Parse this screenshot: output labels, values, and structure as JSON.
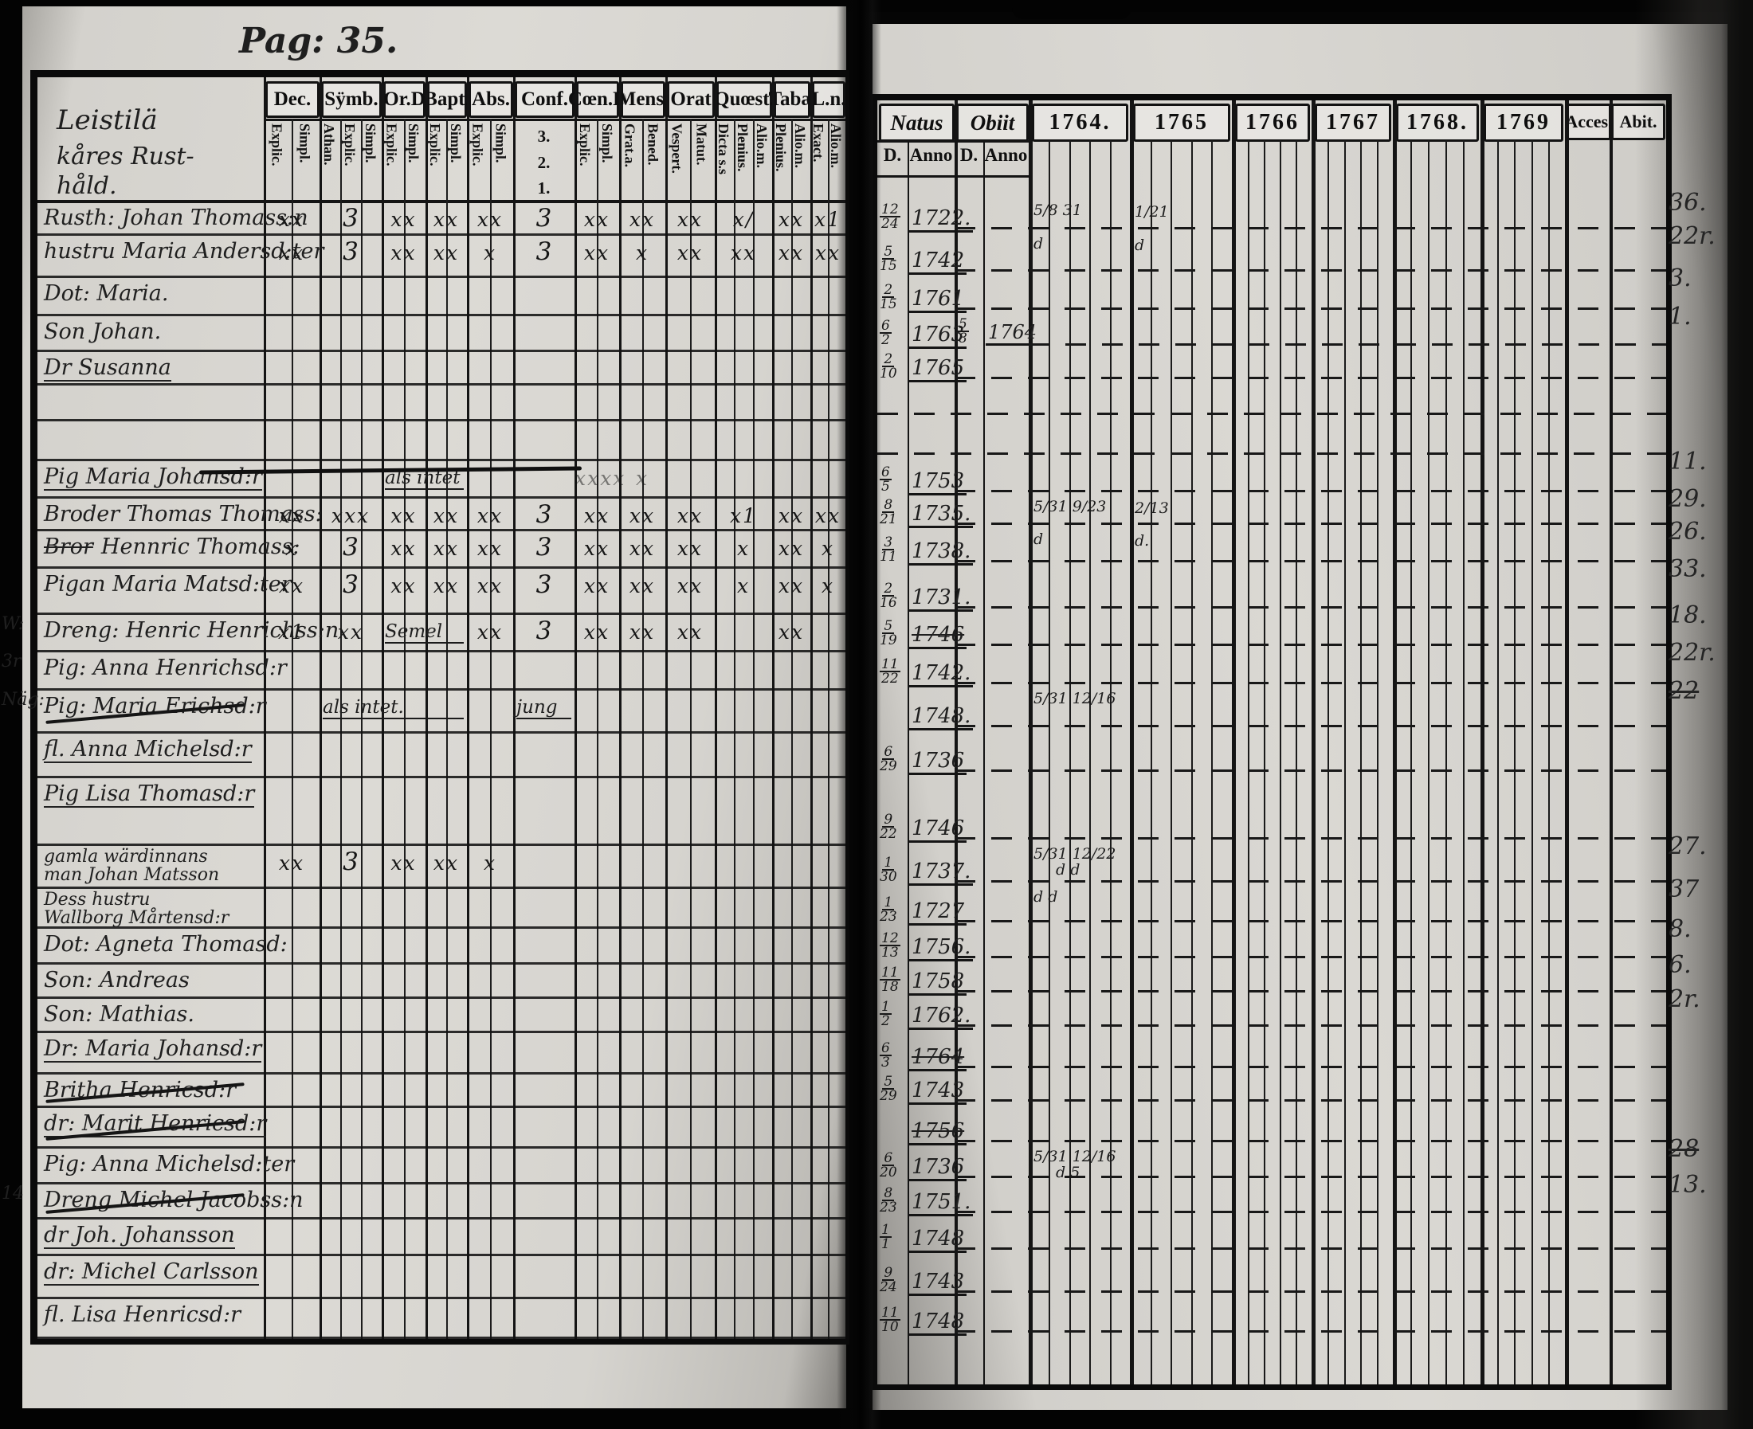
{
  "page": {
    "number_label": "Pag: 35."
  },
  "left_page": {
    "title_lines": [
      "Leistilä",
      "kåres Rust-",
      "håld."
    ],
    "columns": [
      {
        "label": "Dec.",
        "subs": [
          "Explic.",
          "Simpl."
        ]
      },
      {
        "label": "Sÿmb.",
        "subs": [
          "Athan.",
          "Explic.",
          "Simpl."
        ]
      },
      {
        "label": "Or.D",
        "subs": [
          "Explic.",
          "Simpl."
        ]
      },
      {
        "label": "Bapt.",
        "subs": [
          "Explic.",
          "Simpl."
        ]
      },
      {
        "label": "Abs.",
        "subs": [
          "Explic.",
          "Simpl."
        ]
      },
      {
        "label": "Conf.",
        "subs": [
          "3.",
          "2.",
          "1."
        ]
      },
      {
        "label": "Cœn.D",
        "subs": [
          "Explic.",
          "Simpl."
        ]
      },
      {
        "label": "Mens.",
        "subs": [
          "Grat.a.",
          "Bened."
        ]
      },
      {
        "label": "Orat",
        "subs": [
          "Vespert.",
          "Matut."
        ]
      },
      {
        "label": "Quœst.",
        "subs": [
          "Dicta s.s",
          "Plenius.",
          "Alio.m."
        ]
      },
      {
        "label": "Tabæ",
        "subs": [
          "Plenius.",
          "Alio.m."
        ]
      },
      {
        "label": "L.n.",
        "subs": [
          "Exact.",
          "Alio.m."
        ]
      }
    ],
    "rows": [
      {
        "name": "Rusth: Johan Thomass:n",
        "marks": [
          "xx",
          "3",
          "xx",
          "xx",
          "xx",
          "3",
          "xx",
          "xx",
          "xx",
          "x/",
          "xx",
          "x1"
        ]
      },
      {
        "name": "hustru Maria Andersd:ter",
        "marks": [
          "xx",
          "3",
          "xx",
          "xx",
          "x",
          "3",
          "xx",
          "x",
          "xx",
          "xx",
          "xx",
          "xx"
        ]
      },
      {
        "name": "Dot: Maria."
      },
      {
        "name": "Son Johan."
      },
      {
        "name": "Dr Susanna",
        "underline": true
      },
      {},
      {},
      {
        "name": "Pig Maria Johansd:r",
        "underline": true,
        "faint": true,
        "smear": true,
        "note1": {
          "text": "als intet",
          "col": 2,
          "span": 2
        },
        "marks": [
          "",
          "",
          "",
          "",
          "",
          "",
          "xxxx",
          "x",
          "",
          "",
          "",
          ""
        ]
      },
      {
        "name": "Broder Thomas Thomass:",
        "marks": [
          "xx",
          "xxx",
          "xx",
          "xx",
          "xx",
          "3",
          "xx",
          "xx",
          "xx",
          "x1",
          "xx",
          "xx"
        ]
      },
      {
        "name": "Hennric Thomass:",
        "prefix": "Bror",
        "prefix_struck": true,
        "marks": [
          "x",
          "3",
          "xx",
          "xx",
          "xx",
          "3",
          "xx",
          "xx",
          "xx",
          "x",
          "xx",
          "x"
        ]
      },
      {
        "name": "Pigan Maria Matsd:ter",
        "marks": [
          "xx",
          "3",
          "xx",
          "xx",
          "xx",
          "3",
          "xx",
          "xx",
          "xx",
          "x",
          "xx",
          "x"
        ]
      },
      {
        "name": "Dreng: Henric Henrichss:n",
        "margin": "W:",
        "note1": {
          "text": "Semel",
          "col": 2,
          "span": 2
        },
        "marks": [
          "x1",
          "xx",
          "",
          "",
          "xx",
          "3",
          "xx",
          "xx",
          "xx",
          "",
          "xx",
          ""
        ]
      },
      {
        "name": "Pig: Anna Henrichsd:r",
        "margin": "3r"
      },
      {
        "name": "Pig: Maria Erichsd:r",
        "struck": true,
        "margin": "Näg:",
        "note1": {
          "text": "als intet.",
          "col": 1,
          "span": 3
        },
        "note2": {
          "text": "jung",
          "col": 5,
          "span": 1
        }
      },
      {
        "name": "fl. Anna Michelsd:r",
        "underline": true
      },
      {
        "name": "Pig Lisa Thomasd:r",
        "underline": true
      },
      {
        "name2": [
          "gamla wärdinnans",
          "man Johan Matsson"
        ],
        "marks": [
          "xx",
          "3",
          "xx",
          "xx",
          "x",
          "",
          "",
          "",
          "",
          "",
          "",
          ""
        ]
      },
      {
        "name2": [
          "Dess hustru",
          "Wallborg Mårtensd:r"
        ],
        "underline": true
      },
      {
        "name": "Dot: Agneta Thomasd:"
      },
      {
        "name": "Son: Andreas"
      },
      {
        "name": "Son: Mathias."
      },
      {
        "name": "Dr: Maria Johansd:r",
        "underline": true
      },
      {
        "name": "Britha Henricsd:r",
        "struck": true
      },
      {
        "name": "dr: Marit Henricsd:r",
        "struck": true,
        "underline": true
      },
      {
        "name": "Pig: Anna Michelsd:ter"
      },
      {
        "name": "Dreng Michel Jacobss:n",
        "struck": true,
        "margin": "14"
      },
      {
        "name": "dr Joh. Johansson",
        "underline": true
      },
      {
        "name": "dr: Michel Carlsson",
        "underline": true
      },
      {
        "name": "fl. Lisa Henricsd:r"
      }
    ]
  },
  "right_page": {
    "natus_label": "Natus",
    "obiit_label": "Obiit",
    "d_label": "D.",
    "anno_label": "Anno",
    "years": [
      "1764.",
      "1765",
      "1766",
      "1767",
      "1768.",
      "1769"
    ],
    "acces_label": "Acces.",
    "abit_label": "Abit.",
    "rows": [
      {
        "d": "12/24",
        "anno": "1722.",
        "y1764": "5/8 31",
        "y1765": "1/21",
        "age": "36."
      },
      {
        "d": "5/15",
        "anno": "1742",
        "y1764": "d",
        "y1765": "d",
        "age": "22r."
      },
      {
        "d": "2/15",
        "anno": "1761",
        "age": "3."
      },
      {
        "d": "6/2",
        "anno": "1763",
        "od": "5/8",
        "oanno": "1764",
        "age": "1."
      },
      {
        "d": "2/10",
        "anno": "1765"
      },
      {},
      {},
      {
        "d": "6/5",
        "anno": "1753",
        "age": "11."
      },
      {
        "d": "8/21",
        "anno": "1735.",
        "y1764": "5/31 9/23",
        "y1765": "2/13",
        "age": "29."
      },
      {
        "d": "3/11",
        "anno": "1738.",
        "y1764": "d",
        "y1765": "d.",
        "age": "26."
      },
      {
        "d": "2/16",
        "anno": "1731.",
        "age": "33."
      },
      {
        "d": "5/19",
        "anno": "1746",
        "anno_struck": true,
        "age": "18."
      },
      {
        "d": "11/22",
        "anno": "1742.",
        "age": "22r."
      },
      {
        "anno": "1748.",
        "y1764": "5/31 12/16",
        "age": "22",
        "age_struck": true
      },
      {
        "d": "6/29",
        "anno": "1736"
      },
      {
        "d": "9/22",
        "anno": "1746"
      },
      {
        "d": "1/30",
        "anno": "1737.",
        "y1764": "5/31 12/22",
        "y1764b": "d d",
        "age": "27."
      },
      {
        "d": "1/23",
        "anno": "1727",
        "y1764": "d d",
        "age": "37"
      },
      {
        "d": "12/13",
        "anno": "1756.",
        "age": "8."
      },
      {
        "d": "11/18",
        "anno": "1758",
        "age": "6."
      },
      {
        "d": "1/2",
        "anno": "1762.",
        "age": "2r."
      },
      {
        "d": "6/3",
        "anno": "1764",
        "anno_struck": true
      },
      {
        "d": "5/29",
        "anno": "1743"
      },
      {
        "anno": "1756",
        "anno_struck": true
      },
      {
        "d": "6/20",
        "anno": "1736",
        "y1764": "5/31 12/16",
        "y1764b": "d 5",
        "age": "28",
        "age_struck": true
      },
      {
        "d": "8/23",
        "anno": "1751.",
        "age": "13."
      },
      {
        "d": "1/1",
        "anno": "1748"
      },
      {
        "d": "9/24",
        "anno": "1743"
      },
      {
        "d": "11/10",
        "anno": "1748"
      }
    ]
  }
}
